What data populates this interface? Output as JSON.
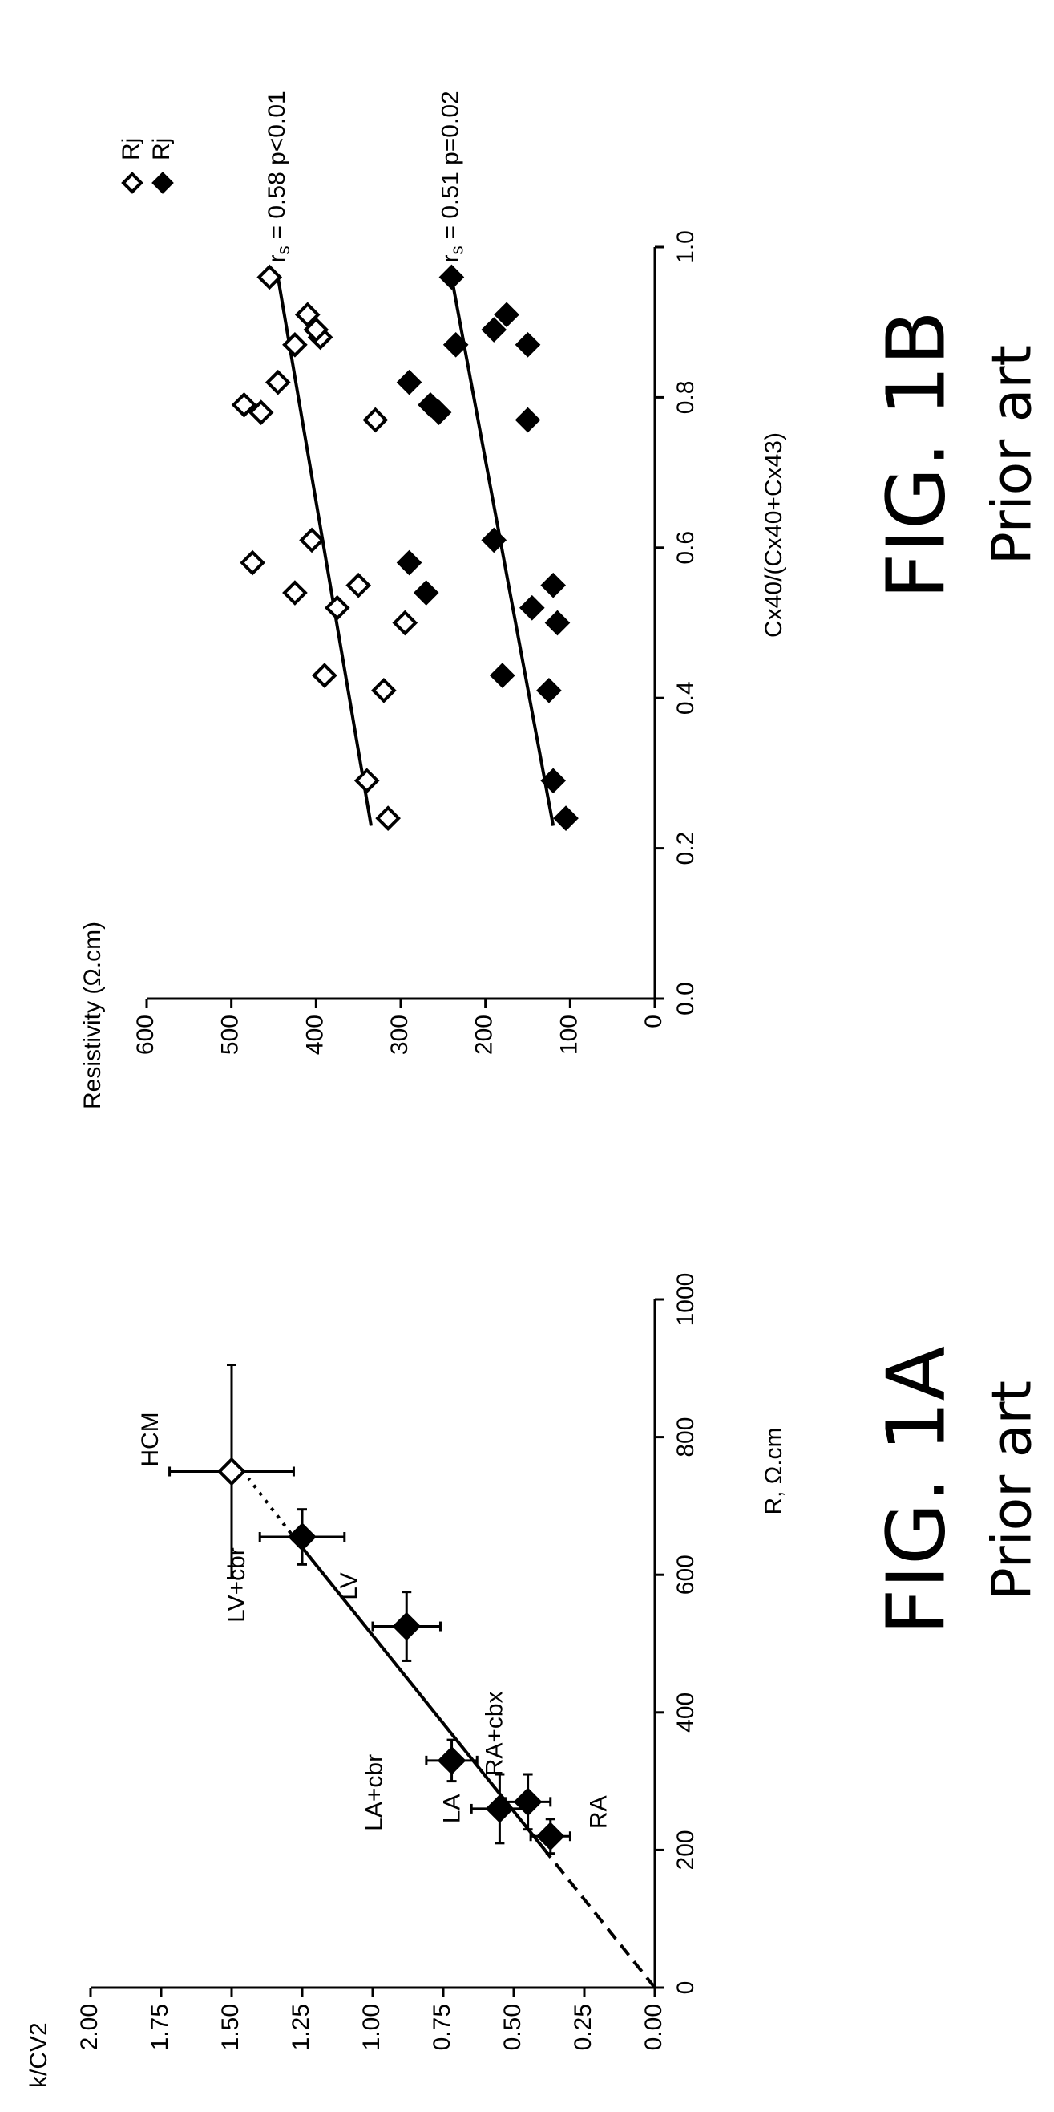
{
  "chart_data": [
    {
      "type": "scatter",
      "ylabel": "k/CV2",
      "xlabel": "R, Ω.cm",
      "figure_label": "FIG. 1A",
      "caption": "Prior art",
      "color": "#000000",
      "xlim": [
        0,
        1000
      ],
      "xticks": [
        0,
        200,
        400,
        600,
        800,
        1000
      ],
      "ylim": [
        0,
        2
      ],
      "yticks": [
        {
          "value": 0,
          "label": "0.00"
        },
        {
          "value": 0.25,
          "label": "0.25"
        },
        {
          "value": 0.5,
          "label": "0.50"
        },
        {
          "value": 0.75,
          "label": "0.75"
        },
        {
          "value": 1,
          "label": "1.00"
        },
        {
          "value": 1.25,
          "label": "1.25"
        },
        {
          "value": 1.5,
          "label": "1.50"
        },
        {
          "value": 1.75,
          "label": "1.75"
        },
        {
          "value": 2,
          "label": "2.00"
        }
      ],
      "point_labels": [
        "RA",
        "RA+cbx",
        "LA",
        "LA+cbr",
        "LV",
        "LV+cbr",
        "HCM"
      ],
      "x": [
        220,
        270,
        260,
        330,
        525,
        655,
        750
      ],
      "values": [
        0.37,
        0.45,
        0.55,
        0.72,
        0.88,
        1.25,
        1.5
      ],
      "xerr": [
        25,
        40,
        50,
        30,
        50,
        40,
        155
      ],
      "yerr": [
        0.07,
        0.08,
        0.1,
        0.09,
        0.12,
        0.15,
        0.22
      ],
      "markers": [
        "filled",
        "filled",
        "filled",
        "filled",
        "filled",
        "filled",
        "open"
      ],
      "lines": [
        {
          "style": "dashed",
          "x": [
            0,
            200
          ],
          "values": [
            0,
            0.39
          ]
        },
        {
          "style": "solid",
          "x": [
            200,
            660
          ],
          "values": [
            0.39,
            1.29
          ]
        },
        {
          "style": "dotted",
          "x": [
            660,
            740
          ],
          "values": [
            1.29,
            1.44
          ]
        }
      ]
    },
    {
      "type": "scatter",
      "ylabel": "Resistivity (Ω.cm)",
      "xlabel": "Cx40/(Cx40+Cx43)",
      "figure_label": "FIG. 1B",
      "caption": "Prior art",
      "color": "#000000",
      "xlim": [
        0,
        1
      ],
      "xticks": [
        {
          "value": 0,
          "label": "0.0"
        },
        {
          "value": 0.2,
          "label": "0.2"
        },
        {
          "value": 0.4,
          "label": "0.4"
        },
        {
          "value": 0.6,
          "label": "0.6"
        },
        {
          "value": 0.8,
          "label": "0.8"
        },
        {
          "value": 1,
          "label": "1.0"
        }
      ],
      "ylim": [
        0,
        600
      ],
      "yticks": [
        0,
        100,
        200,
        300,
        400,
        500,
        600
      ],
      "series": [
        {
          "name": "Rj",
          "marker": "open",
          "x": [
            0.24,
            0.29,
            0.41,
            0.43,
            0.5,
            0.52,
            0.54,
            0.55,
            0.58,
            0.61,
            0.77,
            0.78,
            0.79,
            0.82,
            0.87,
            0.88,
            0.89,
            0.91,
            0.96
          ],
          "values": [
            315,
            340,
            320,
            390,
            295,
            375,
            425,
            350,
            475,
            405,
            330,
            465,
            485,
            445,
            425,
            395,
            400,
            410,
            455
          ],
          "fit": {
            "x": [
              0.23,
              0.96
            ],
            "values": [
              335,
              445
            ]
          },
          "annotation": {
            "symbol": "r",
            "subscript": "s",
            "text": "= 0.58 p<0.01"
          }
        },
        {
          "name": "Rj",
          "marker": "filled",
          "x": [
            0.24,
            0.29,
            0.41,
            0.43,
            0.5,
            0.52,
            0.54,
            0.55,
            0.58,
            0.61,
            0.77,
            0.78,
            0.79,
            0.82,
            0.87,
            0.87,
            0.89,
            0.91,
            0.96
          ],
          "values": [
            105,
            120,
            125,
            180,
            115,
            145,
            270,
            120,
            290,
            190,
            150,
            255,
            265,
            290,
            150,
            235,
            190,
            175,
            240
          ],
          "fit": {
            "x": [
              0.23,
              0.96
            ],
            "values": [
              120,
              240
            ]
          },
          "annotation": {
            "symbol": "r",
            "subscript": "s",
            "text": "= 0.51 p=0.02"
          }
        }
      ]
    }
  ]
}
